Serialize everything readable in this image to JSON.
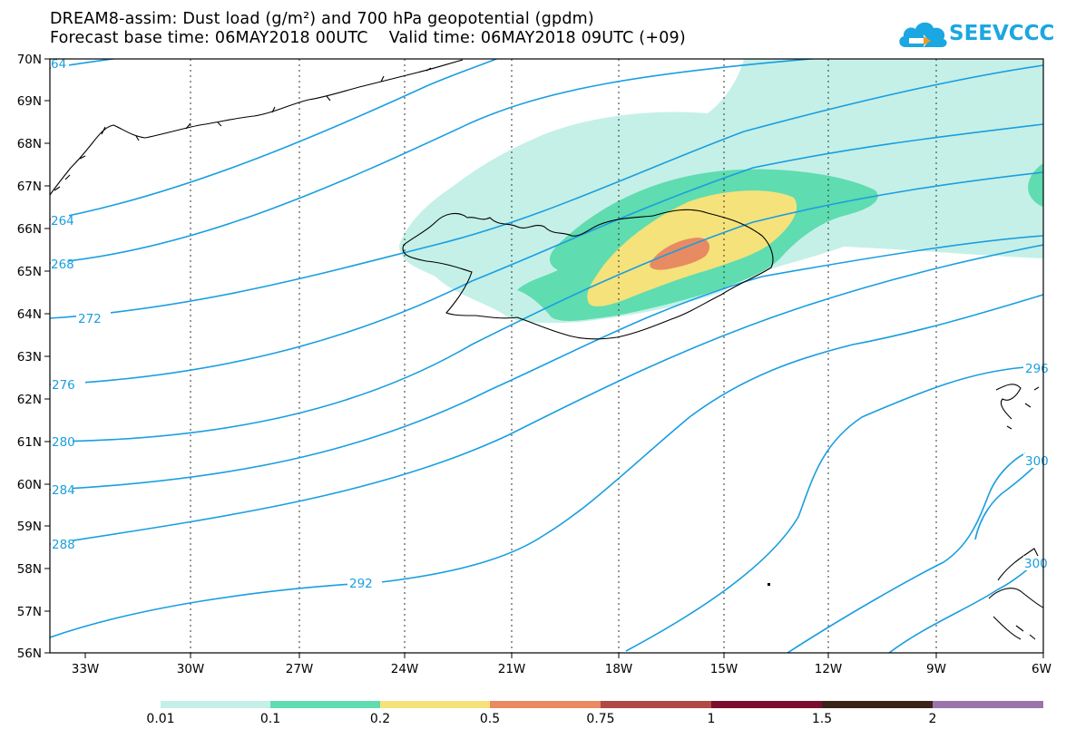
{
  "title": {
    "line1": "DREAM8-assim: Dust load (g/m²) and 700 hPa geopotential (gpdm)",
    "line2_left": "Forecast base time: 06MAY2018 00UTC",
    "line2_right": "Valid time: 06MAY2018 09UTC (+09)"
  },
  "logo": {
    "text": "SEEVCCC",
    "icon": "cloud-icon"
  },
  "axes": {
    "lat_labels": [
      "70N",
      "69N",
      "68N",
      "67N",
      "66N",
      "65N",
      "64N",
      "63N",
      "62N",
      "61N",
      "60N",
      "59N",
      "58N",
      "57N",
      "56N"
    ],
    "lon_labels": [
      "33W",
      "30W",
      "27W",
      "24W",
      "21W",
      "18W",
      "15W",
      "12W",
      "9W",
      "6W"
    ]
  },
  "contour_labels": [
    "64",
    "264",
    "268",
    "272",
    "276",
    "280",
    "284",
    "288",
    "292",
    "296",
    "300",
    "300"
  ],
  "legend": {
    "labels": [
      "0.01",
      "0.1",
      "0.2",
      "0.5",
      "0.75",
      "1",
      "1.5",
      "2"
    ],
    "colors": [
      "#c4f0e8",
      "#5fdcb0",
      "#f5e27a",
      "#e88a62",
      "#b04a44",
      "#7a1030",
      "#3a2418",
      "#9a74aa"
    ]
  },
  "colors": {
    "contour": "#1a9ee0",
    "coast": "#000000"
  }
}
